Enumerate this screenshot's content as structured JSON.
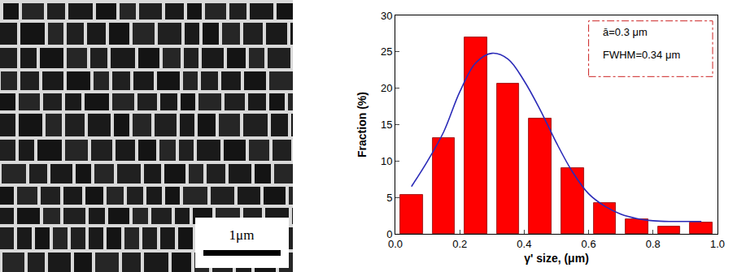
{
  "chart_data": {
    "type": "bar",
    "bins": [
      0,
      0.1,
      0.2,
      0.3,
      0.4,
      0.5,
      0.6,
      0.7,
      0.8,
      0.9,
      1.0
    ],
    "values": [
      5.3,
      13.2,
      27,
      20.6,
      15.8,
      9,
      4.2,
      2,
      1,
      1.6
    ],
    "color": "#ff0000",
    "series": [
      {
        "type": "line",
        "color": "#2b2bb8",
        "x": [
          0.05,
          0.1,
          0.15,
          0.2,
          0.25,
          0.3,
          0.35,
          0.4,
          0.45,
          0.5,
          0.55,
          0.6,
          0.65,
          0.7,
          0.75,
          0.8,
          0.85,
          0.9,
          0.95
        ],
        "values": [
          6.5,
          10,
          14,
          19.5,
          23.5,
          24.8,
          24,
          21,
          17,
          12.5,
          8.5,
          5.5,
          3.8,
          2.7,
          2.1,
          1.8,
          1.7,
          1.7,
          1.7
        ]
      }
    ],
    "x_label": "γ' size, (μm)",
    "y_label": "Fraction (%)",
    "xlim": [
      0,
      1.0
    ],
    "xticks": [
      {
        "value": 0,
        "label": "0.0"
      },
      0.2,
      0.4,
      0.6,
      0.8,
      {
        "value": 1.0,
        "label": "1.0"
      }
    ],
    "ylim": [
      0,
      30
    ],
    "yticks": [
      0,
      5,
      10,
      15,
      20,
      25,
      30
    ],
    "annotations": [
      "ā=0.3 μm",
      "FWHM=0.34 μm"
    ],
    "grid": false
  },
  "micrograph": {
    "scale_bar_label": "1μm"
  }
}
